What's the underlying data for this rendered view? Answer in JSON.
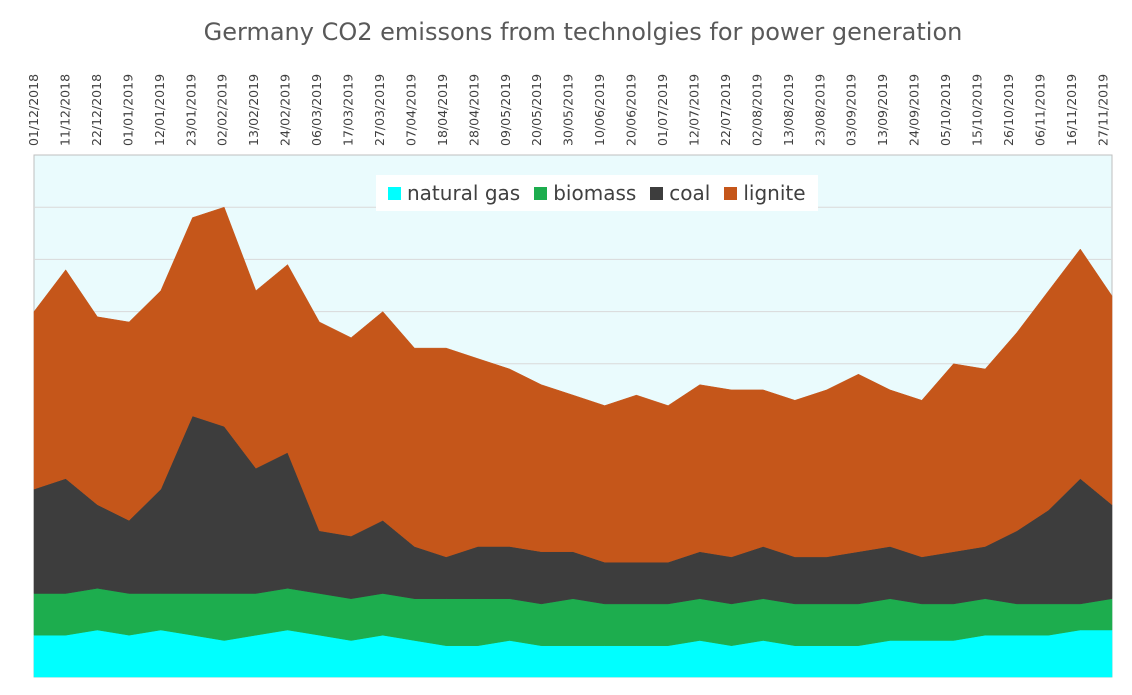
{
  "chart_data": {
    "type": "area",
    "stacked": true,
    "title": "Germany  CO2 emissons from technolgies for power generation",
    "xlabel": "",
    "ylabel": "",
    "x_tick_labels": [
      "01/12/2018",
      "11/12/2018",
      "22/12/2018",
      "01/01/2019",
      "12/01/2019",
      "23/01/2019",
      "02/02/2019",
      "13/02/2019",
      "24/02/2019",
      "06/03/2019",
      "17/03/2019",
      "27/03/2019",
      "07/04/2019",
      "18/04/2019",
      "28/04/2019",
      "09/05/2019",
      "20/05/2019",
      "30/05/2019",
      "10/06/2019",
      "20/06/2019",
      "01/07/2019",
      "12/07/2019",
      "22/07/2019",
      "02/08/2019",
      "13/08/2019",
      "23/08/2019",
      "03/09/2019",
      "13/09/2019",
      "24/09/2019",
      "05/10/2019",
      "15/10/2019",
      "26/10/2019",
      "06/11/2019",
      "16/11/2019",
      "27/11/2019"
    ],
    "x_range": [
      "01/12/2018",
      "30/11/2019"
    ],
    "grid": "horizontal",
    "legend_position": "top-center",
    "y_range": [
      0,
      100
    ],
    "series": [
      {
        "name": "natural gas",
        "color": "#00FFFF",
        "values": [
          8,
          8,
          9,
          8,
          9,
          8,
          7,
          8,
          9,
          8,
          7,
          8,
          7,
          6,
          6,
          7,
          6,
          6,
          6,
          6,
          6,
          7,
          6,
          7,
          6,
          6,
          6,
          7,
          7,
          7,
          8,
          8,
          8,
          9,
          9
        ]
      },
      {
        "name": "biomass",
        "color": "#1DAD4E",
        "values": [
          8,
          8,
          8,
          8,
          7,
          8,
          9,
          8,
          8,
          8,
          8,
          8,
          8,
          9,
          9,
          8,
          8,
          9,
          8,
          8,
          8,
          8,
          8,
          8,
          8,
          8,
          8,
          8,
          7,
          7,
          7,
          6,
          6,
          5,
          6
        ]
      },
      {
        "name": "coal",
        "color": "#3D3D3D",
        "values": [
          20,
          22,
          16,
          14,
          20,
          34,
          32,
          24,
          26,
          12,
          12,
          14,
          10,
          8,
          10,
          10,
          10,
          9,
          8,
          8,
          8,
          9,
          9,
          10,
          9,
          9,
          10,
          10,
          9,
          10,
          10,
          14,
          18,
          24,
          18
        ]
      },
      {
        "name": "lignite",
        "color": "#C5561A",
        "values": [
          34,
          40,
          36,
          38,
          38,
          38,
          42,
          34,
          36,
          40,
          38,
          40,
          38,
          40,
          36,
          34,
          32,
          30,
          30,
          32,
          30,
          32,
          32,
          30,
          30,
          32,
          34,
          30,
          30,
          36,
          34,
          38,
          42,
          44,
          40
        ]
      }
    ]
  }
}
